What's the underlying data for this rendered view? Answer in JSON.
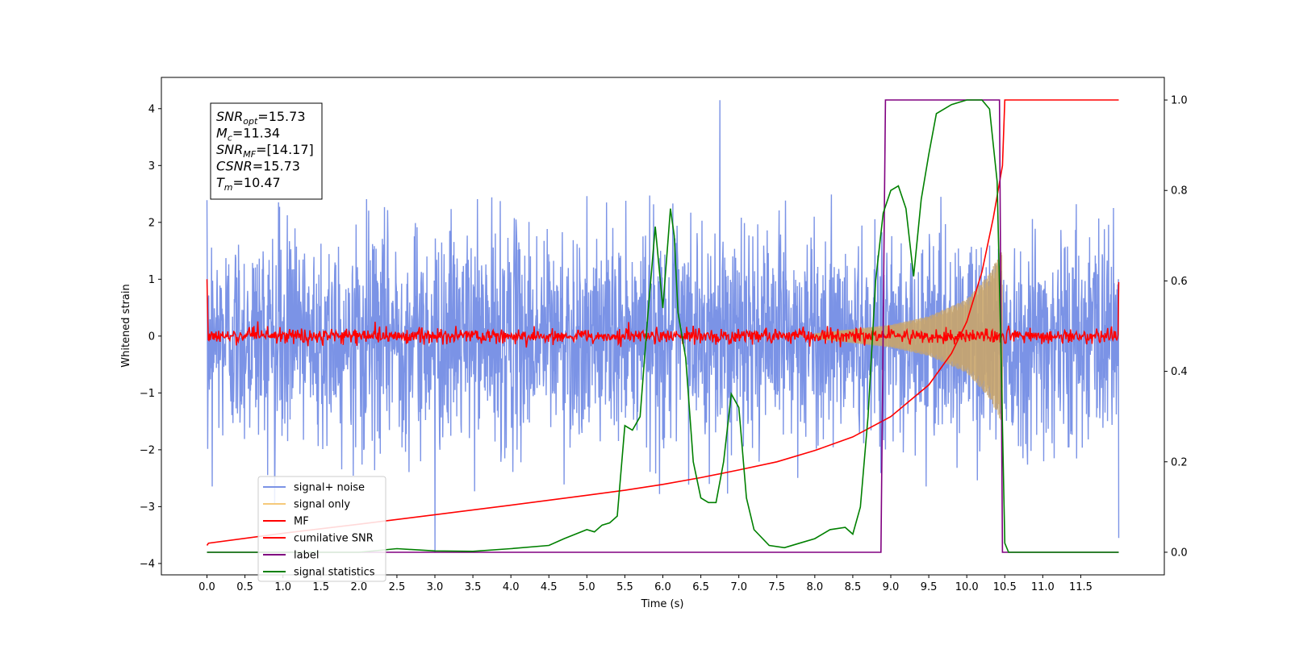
{
  "chart_data": {
    "type": "line",
    "xlabel": "Time (s)",
    "ylabel_left": "Whitened strain",
    "xlim": [
      -0.6,
      12.6
    ],
    "ylim_left": [
      -4.2,
      4.55
    ],
    "ylim_right": [
      -0.05,
      1.05
    ],
    "x_ticks": [
      0.0,
      0.5,
      1.0,
      1.5,
      2.0,
      2.5,
      3.0,
      3.5,
      4.0,
      4.5,
      5.0,
      5.5,
      6.0,
      6.5,
      7.0,
      7.5,
      8.0,
      8.5,
      9.0,
      9.5,
      10.0,
      10.5,
      11.0,
      11.5
    ],
    "x_tick_labels": [
      "0.0",
      "0.5",
      "1.0",
      "1.5",
      "2.0",
      "2.5",
      "3.0",
      "3.5",
      "4.0",
      "4.5",
      "5.0",
      "5.5",
      "6.0",
      "6.5",
      "7.0",
      "7.5",
      "8.0",
      "8.5",
      "9.0",
      "9.5",
      "10.0",
      "10.5",
      "11.0",
      "11.5"
    ],
    "y_left_ticks": [
      -4,
      -3,
      -2,
      -1,
      0,
      1,
      2,
      3,
      4
    ],
    "y_left_tick_labels": [
      "−4",
      "−3",
      "−2",
      "−1",
      "0",
      "1",
      "2",
      "3",
      "4"
    ],
    "y_right_ticks": [
      0.0,
      0.2,
      0.4,
      0.6,
      0.8,
      1.0
    ],
    "y_right_tick_labels": [
      "0.0",
      "0.2",
      "0.4",
      "0.6",
      "0.8",
      "1.0"
    ],
    "grid": false,
    "legend_position": "lower-left",
    "info_box": {
      "position": "upper-left",
      "lines": [
        {
          "base": "SNR",
          "sub": "opt",
          "value": "=15.73"
        },
        {
          "base": "M",
          "sub": "c",
          "value": "=11.34"
        },
        {
          "base": "SNR",
          "sub": "MF",
          "value": "=[14.17]"
        },
        {
          "base": "CSNR",
          "sub": "",
          "value": "=15.73"
        },
        {
          "base": "T",
          "sub": "m",
          "value": "=10.47"
        }
      ]
    },
    "series": [
      {
        "name": "signal+ noise",
        "color": "#7b93e6",
        "axis": "left",
        "kind": "noise",
        "x_range": [
          0.0,
          12.0
        ],
        "amplitude_envelope": 2.5,
        "peaks": [
          {
            "x": 6.75,
            "y": 4.15
          },
          {
            "x": 3.0,
            "y": -3.8
          },
          {
            "x": 12.0,
            "y": -3.55
          }
        ]
      },
      {
        "name": "signal only",
        "color": "#f5c97a",
        "axis": "left",
        "kind": "chirp",
        "x_range": [
          0.0,
          10.47
        ],
        "envelope": [
          [
            8.0,
            0.05
          ],
          [
            9.0,
            0.2
          ],
          [
            9.5,
            0.35
          ],
          [
            10.0,
            0.65
          ],
          [
            10.3,
            1.1
          ],
          [
            10.47,
            1.55
          ]
        ]
      },
      {
        "name": "MF",
        "color": "#ff0000",
        "axis": "left",
        "kind": "mf_noise",
        "x_range": [
          0.0,
          12.0
        ],
        "amplitude": 0.12,
        "start_value": 1.0,
        "end_value": 0.95
      },
      {
        "name": "cumilative SNR",
        "color": "#ff0000",
        "axis": "right",
        "x": [
          0.0,
          0.02,
          1.0,
          2.0,
          3.0,
          4.0,
          5.0,
          5.5,
          6.0,
          6.5,
          7.0,
          7.5,
          8.0,
          8.5,
          9.0,
          9.5,
          9.8,
          10.0,
          10.2,
          10.35,
          10.47,
          10.5,
          12.0
        ],
        "values": [
          0.015,
          0.02,
          0.042,
          0.062,
          0.083,
          0.104,
          0.126,
          0.137,
          0.15,
          0.165,
          0.182,
          0.2,
          0.225,
          0.255,
          0.3,
          0.37,
          0.44,
          0.51,
          0.62,
          0.74,
          0.855,
          1.0,
          1.0
        ]
      },
      {
        "name": "label",
        "color": "#800080",
        "axis": "right",
        "x": [
          0.0,
          8.87,
          8.93,
          10.43,
          10.47,
          12.0
        ],
        "values": [
          0.0,
          0.0,
          1.0,
          1.0,
          0.0,
          0.0
        ]
      },
      {
        "name": "signal statistics",
        "color": "#008000",
        "axis": "right",
        "x": [
          0.0,
          1.0,
          2.0,
          2.5,
          3.0,
          3.5,
          4.0,
          4.5,
          4.7,
          5.0,
          5.1,
          5.2,
          5.3,
          5.4,
          5.5,
          5.6,
          5.7,
          5.8,
          5.9,
          6.0,
          6.1,
          6.15,
          6.2,
          6.3,
          6.4,
          6.5,
          6.6,
          6.7,
          6.8,
          6.9,
          7.0,
          7.1,
          7.2,
          7.4,
          7.6,
          7.8,
          8.0,
          8.2,
          8.4,
          8.5,
          8.6,
          8.7,
          8.8,
          8.9,
          9.0,
          9.1,
          9.2,
          9.3,
          9.4,
          9.5,
          9.6,
          9.8,
          10.0,
          10.2,
          10.3,
          10.4,
          10.45,
          10.5,
          10.55,
          10.6,
          12.0
        ],
        "values": [
          0.0,
          0.0,
          0.0,
          0.008,
          0.003,
          0.002,
          0.008,
          0.015,
          0.03,
          0.05,
          0.045,
          0.06,
          0.065,
          0.08,
          0.28,
          0.27,
          0.3,
          0.52,
          0.72,
          0.54,
          0.76,
          0.7,
          0.53,
          0.43,
          0.2,
          0.12,
          0.11,
          0.11,
          0.2,
          0.35,
          0.32,
          0.12,
          0.05,
          0.015,
          0.01,
          0.02,
          0.03,
          0.05,
          0.055,
          0.04,
          0.1,
          0.3,
          0.6,
          0.75,
          0.8,
          0.81,
          0.76,
          0.61,
          0.78,
          0.88,
          0.97,
          0.99,
          1.0,
          1.0,
          0.98,
          0.82,
          0.45,
          0.02,
          0.0,
          0.0,
          0.0
        ]
      }
    ]
  }
}
